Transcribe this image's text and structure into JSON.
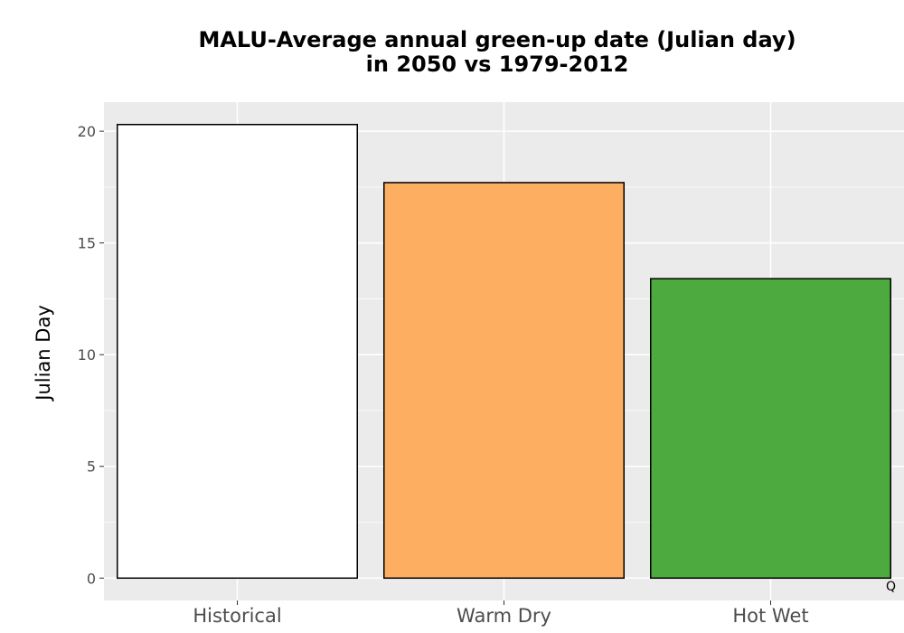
{
  "chart_data": {
    "type": "bar",
    "title_lines": [
      "MALU-Average annual green-up date (Julian day)",
      "in 2050 vs 1979-2012"
    ],
    "xlabel": "",
    "ylabel": "Julian Day",
    "categories": [
      "Historical",
      "Warm Dry",
      "Hot Wet"
    ],
    "values": [
      20.3,
      17.7,
      13.4
    ],
    "colors": [
      "#ffffff",
      "#fdae61",
      "#4daa3e"
    ],
    "ylim": [
      -1,
      21.3
    ],
    "yticks": [
      0,
      5,
      10,
      15,
      20
    ],
    "grid": true,
    "panel_background": "#ebebeb",
    "corner_mark": "Q"
  }
}
